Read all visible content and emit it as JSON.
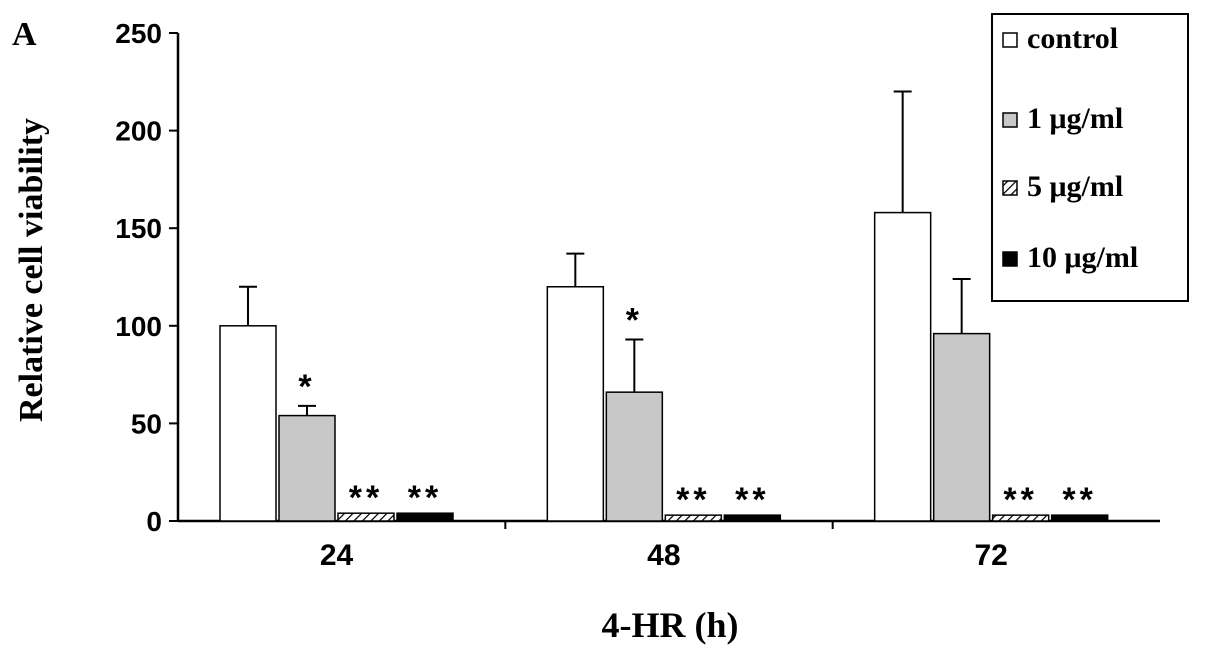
{
  "panel_label": "A",
  "chart_data": {
    "type": "bar",
    "title": "",
    "xlabel": "4-HR (h)",
    "ylabel": "Relative cell viability",
    "ylim": [
      0,
      250
    ],
    "yticks": [
      0,
      50,
      100,
      150,
      200,
      250
    ],
    "grid": false,
    "legend_position": "top-right",
    "categories": [
      "24",
      "48",
      "72"
    ],
    "series": [
      {
        "name": "control",
        "pattern": "white",
        "fill": "#ffffff",
        "values": [
          100,
          120,
          158
        ],
        "errors": [
          20,
          17,
          62
        ],
        "significance": [
          "",
          "",
          ""
        ]
      },
      {
        "name": "1 μg/ml",
        "pattern": "gray",
        "fill": "#c8c8c8",
        "values": [
          54,
          66,
          96
        ],
        "errors": [
          5,
          27,
          28
        ],
        "significance": [
          "*",
          "*",
          ""
        ]
      },
      {
        "name": "5 μg/ml",
        "pattern": "hatched",
        "fill": "#ffffff",
        "values": [
          4,
          3,
          3
        ],
        "errors": [
          0,
          0,
          0
        ],
        "significance": [
          "**",
          "**",
          "**"
        ]
      },
      {
        "name": "10 μg/ml",
        "pattern": "black",
        "fill": "#000000",
        "values": [
          4,
          3,
          3
        ],
        "errors": [
          0,
          0,
          0
        ],
        "significance": [
          "**",
          "**",
          "**"
        ]
      }
    ]
  }
}
